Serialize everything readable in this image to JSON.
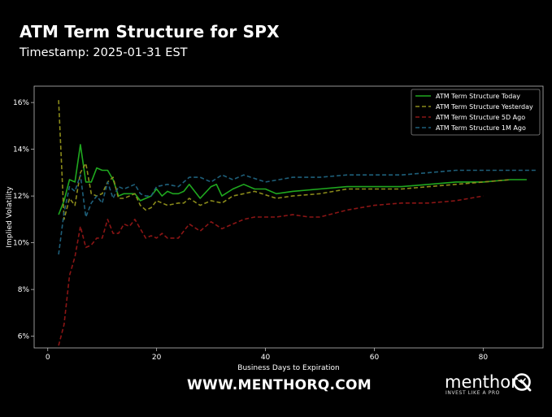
{
  "header": {
    "title": "ATM Term Structure for SPX",
    "subtitle": "Timestamp: 2025-01-31 EST"
  },
  "footer": {
    "url": "WWW.MENTHORQ.COM",
    "brand": "menthor",
    "brand_q": "Q",
    "tagline": "INVEST LIKE A PRO"
  },
  "chart_data": {
    "type": "line",
    "title": "",
    "xlabel": "Business Days to Expiration",
    "ylabel": "Implied Volatility",
    "xlim": [
      -2.5,
      91
    ],
    "ylim": [
      5.5,
      16.7
    ],
    "x_ticks": [
      0,
      20,
      40,
      60,
      80
    ],
    "y_ticks": [
      6,
      8,
      10,
      12,
      14,
      16
    ],
    "y_tick_labels": [
      "6%",
      "8%",
      "10%",
      "12%",
      "14%",
      "16%"
    ],
    "grid": false,
    "legend_position": "top-right",
    "colors": {
      "background": "#000000",
      "axis": "#bbbbbb",
      "text": "#ffffff"
    },
    "series": [
      {
        "name": "ATM Term Structure Today",
        "color": "#1fa81f",
        "style": "solid",
        "x": [
          2,
          3,
          4,
          5,
          6,
          7,
          8,
          9,
          10,
          11,
          12,
          13,
          14,
          16,
          17,
          18,
          19,
          20,
          21,
          22,
          23,
          24,
          25,
          26,
          27,
          28,
          30,
          31,
          32,
          34,
          36,
          38,
          40,
          42,
          45,
          50,
          55,
          60,
          65,
          70,
          75,
          80,
          85,
          88
        ],
        "y": [
          11.2,
          11.8,
          12.7,
          12.6,
          14.2,
          12.6,
          12.6,
          13.2,
          13.1,
          13.1,
          12.7,
          12.0,
          12.1,
          12.1,
          11.8,
          11.9,
          12.0,
          12.3,
          12.0,
          12.2,
          12.1,
          12.1,
          12.2,
          12.5,
          12.2,
          11.9,
          12.4,
          12.5,
          12.0,
          12.3,
          12.5,
          12.3,
          12.3,
          12.1,
          12.2,
          12.3,
          12.4,
          12.4,
          12.4,
          12.5,
          12.6,
          12.6,
          12.7,
          12.7
        ]
      },
      {
        "name": "ATM Term Structure Yesterday",
        "color": "#8b8b1a",
        "style": "dashed",
        "x": [
          2,
          3,
          4,
          5,
          6,
          7,
          8,
          9,
          10,
          11,
          12,
          13,
          14,
          16,
          17,
          18,
          19,
          20,
          22,
          24,
          25,
          26,
          28,
          30,
          32,
          34,
          36,
          38,
          42,
          45,
          50,
          55,
          60,
          65,
          70,
          75,
          80,
          85
        ],
        "y": [
          16.1,
          11.0,
          11.9,
          11.6,
          13.0,
          13.4,
          12.1,
          12.0,
          12.1,
          12.6,
          12.8,
          11.9,
          11.9,
          12.1,
          11.6,
          11.4,
          11.5,
          11.8,
          11.6,
          11.7,
          11.7,
          11.9,
          11.6,
          11.8,
          11.7,
          12.0,
          12.1,
          12.2,
          11.9,
          12.0,
          12.1,
          12.3,
          12.3,
          12.3,
          12.4,
          12.5,
          12.6,
          12.7
        ]
      },
      {
        "name": "ATM Term Structure 5D Ago",
        "color": "#8b1515",
        "style": "dashed",
        "x": [
          2,
          3,
          4,
          5,
          6,
          7,
          8,
          9,
          10,
          11,
          12,
          13,
          14,
          15,
          16,
          17,
          18,
          19,
          20,
          21,
          22,
          24,
          25,
          26,
          28,
          30,
          32,
          34,
          36,
          38,
          40,
          42,
          45,
          48,
          50,
          55,
          60,
          65,
          70,
          75,
          80
        ],
        "y": [
          5.6,
          6.5,
          8.6,
          9.4,
          10.7,
          9.8,
          9.9,
          10.2,
          10.2,
          11.0,
          10.4,
          10.4,
          10.8,
          10.7,
          11.0,
          10.6,
          10.2,
          10.3,
          10.2,
          10.4,
          10.2,
          10.2,
          10.5,
          10.8,
          10.5,
          10.9,
          10.6,
          10.8,
          11.0,
          11.1,
          11.1,
          11.1,
          11.2,
          11.1,
          11.1,
          11.4,
          11.6,
          11.7,
          11.7,
          11.8,
          12.0
        ]
      },
      {
        "name": "ATM Term Structure 1M Ago",
        "color": "#1e5f7a",
        "style": "dashed",
        "x": [
          2,
          3,
          4,
          5,
          6,
          7,
          8,
          9,
          10,
          11,
          12,
          13,
          14,
          16,
          17,
          18,
          19,
          20,
          22,
          24,
          25,
          26,
          28,
          30,
          32,
          34,
          36,
          40,
          45,
          50,
          55,
          60,
          65,
          70,
          75,
          80,
          85,
          90
        ],
        "y": [
          9.5,
          11.3,
          12.4,
          12.2,
          12.9,
          11.1,
          11.7,
          12.0,
          11.7,
          12.6,
          11.9,
          12.4,
          12.3,
          12.5,
          12.1,
          12.0,
          12.0,
          12.4,
          12.5,
          12.4,
          12.6,
          12.8,
          12.8,
          12.6,
          12.9,
          12.7,
          12.9,
          12.6,
          12.8,
          12.8,
          12.9,
          12.9,
          12.9,
          13.0,
          13.1,
          13.1,
          13.1,
          13.1
        ]
      }
    ]
  }
}
